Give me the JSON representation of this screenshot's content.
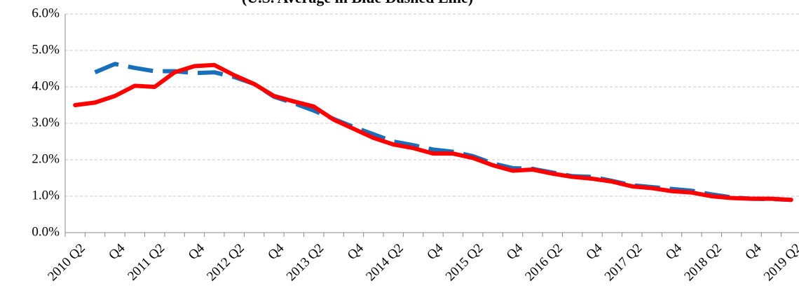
{
  "chart_data": {
    "type": "line",
    "subtitle": "(U.S. Average in Blue Dashed Line)",
    "categories": [
      "2010 Q2",
      null,
      "Q4",
      null,
      "2011 Q2",
      null,
      "Q4",
      null,
      "2012 Q2",
      null,
      "Q4",
      null,
      "2013 Q2",
      null,
      "Q4",
      null,
      "2014 Q2",
      null,
      "Q4",
      null,
      "2015 Q2",
      null,
      "Q4",
      null,
      "2016 Q2",
      null,
      "Q4",
      null,
      "2017 Q2",
      null,
      "Q4",
      null,
      "2018 Q2",
      null,
      "Q4",
      null,
      "2019 Q2"
    ],
    "series": [
      {
        "color": "#1a6fba",
        "dashed": true,
        "values": [
          null,
          4.4,
          4.63,
          4.52,
          4.43,
          4.43,
          4.38,
          4.4,
          4.27,
          4.08,
          3.73,
          3.55,
          3.35,
          3.12,
          2.9,
          2.7,
          2.5,
          2.4,
          2.28,
          2.22,
          2.1,
          1.9,
          1.77,
          1.75,
          1.65,
          1.55,
          1.53,
          1.42,
          1.3,
          1.25,
          1.2,
          1.15,
          1.05,
          0.97,
          0.93,
          0.92,
          0.9
        ]
      },
      {
        "color": "#ff0000",
        "dashed": false,
        "values": [
          3.5,
          3.57,
          3.75,
          4.03,
          4.0,
          4.4,
          4.57,
          4.6,
          4.32,
          4.08,
          3.75,
          3.6,
          3.46,
          3.1,
          2.85,
          2.6,
          2.42,
          2.32,
          2.17,
          2.17,
          2.05,
          1.85,
          1.7,
          1.73,
          1.62,
          1.53,
          1.48,
          1.4,
          1.27,
          1.22,
          1.14,
          1.1,
          1.0,
          0.95,
          0.93,
          0.93,
          0.9
        ]
      }
    ],
    "ylim": [
      0,
      6
    ],
    "yticks": [
      {
        "value": 0,
        "label": "0.0%"
      },
      {
        "value": 1,
        "label": "1.0%"
      },
      {
        "value": 2,
        "label": "2.0%"
      },
      {
        "value": 3,
        "label": "3.0%"
      },
      {
        "value": 4,
        "label": "4.0%"
      },
      {
        "value": 5,
        "label": "5.0%"
      },
      {
        "value": 6,
        "label": "6.0%"
      }
    ],
    "grid": true
  }
}
